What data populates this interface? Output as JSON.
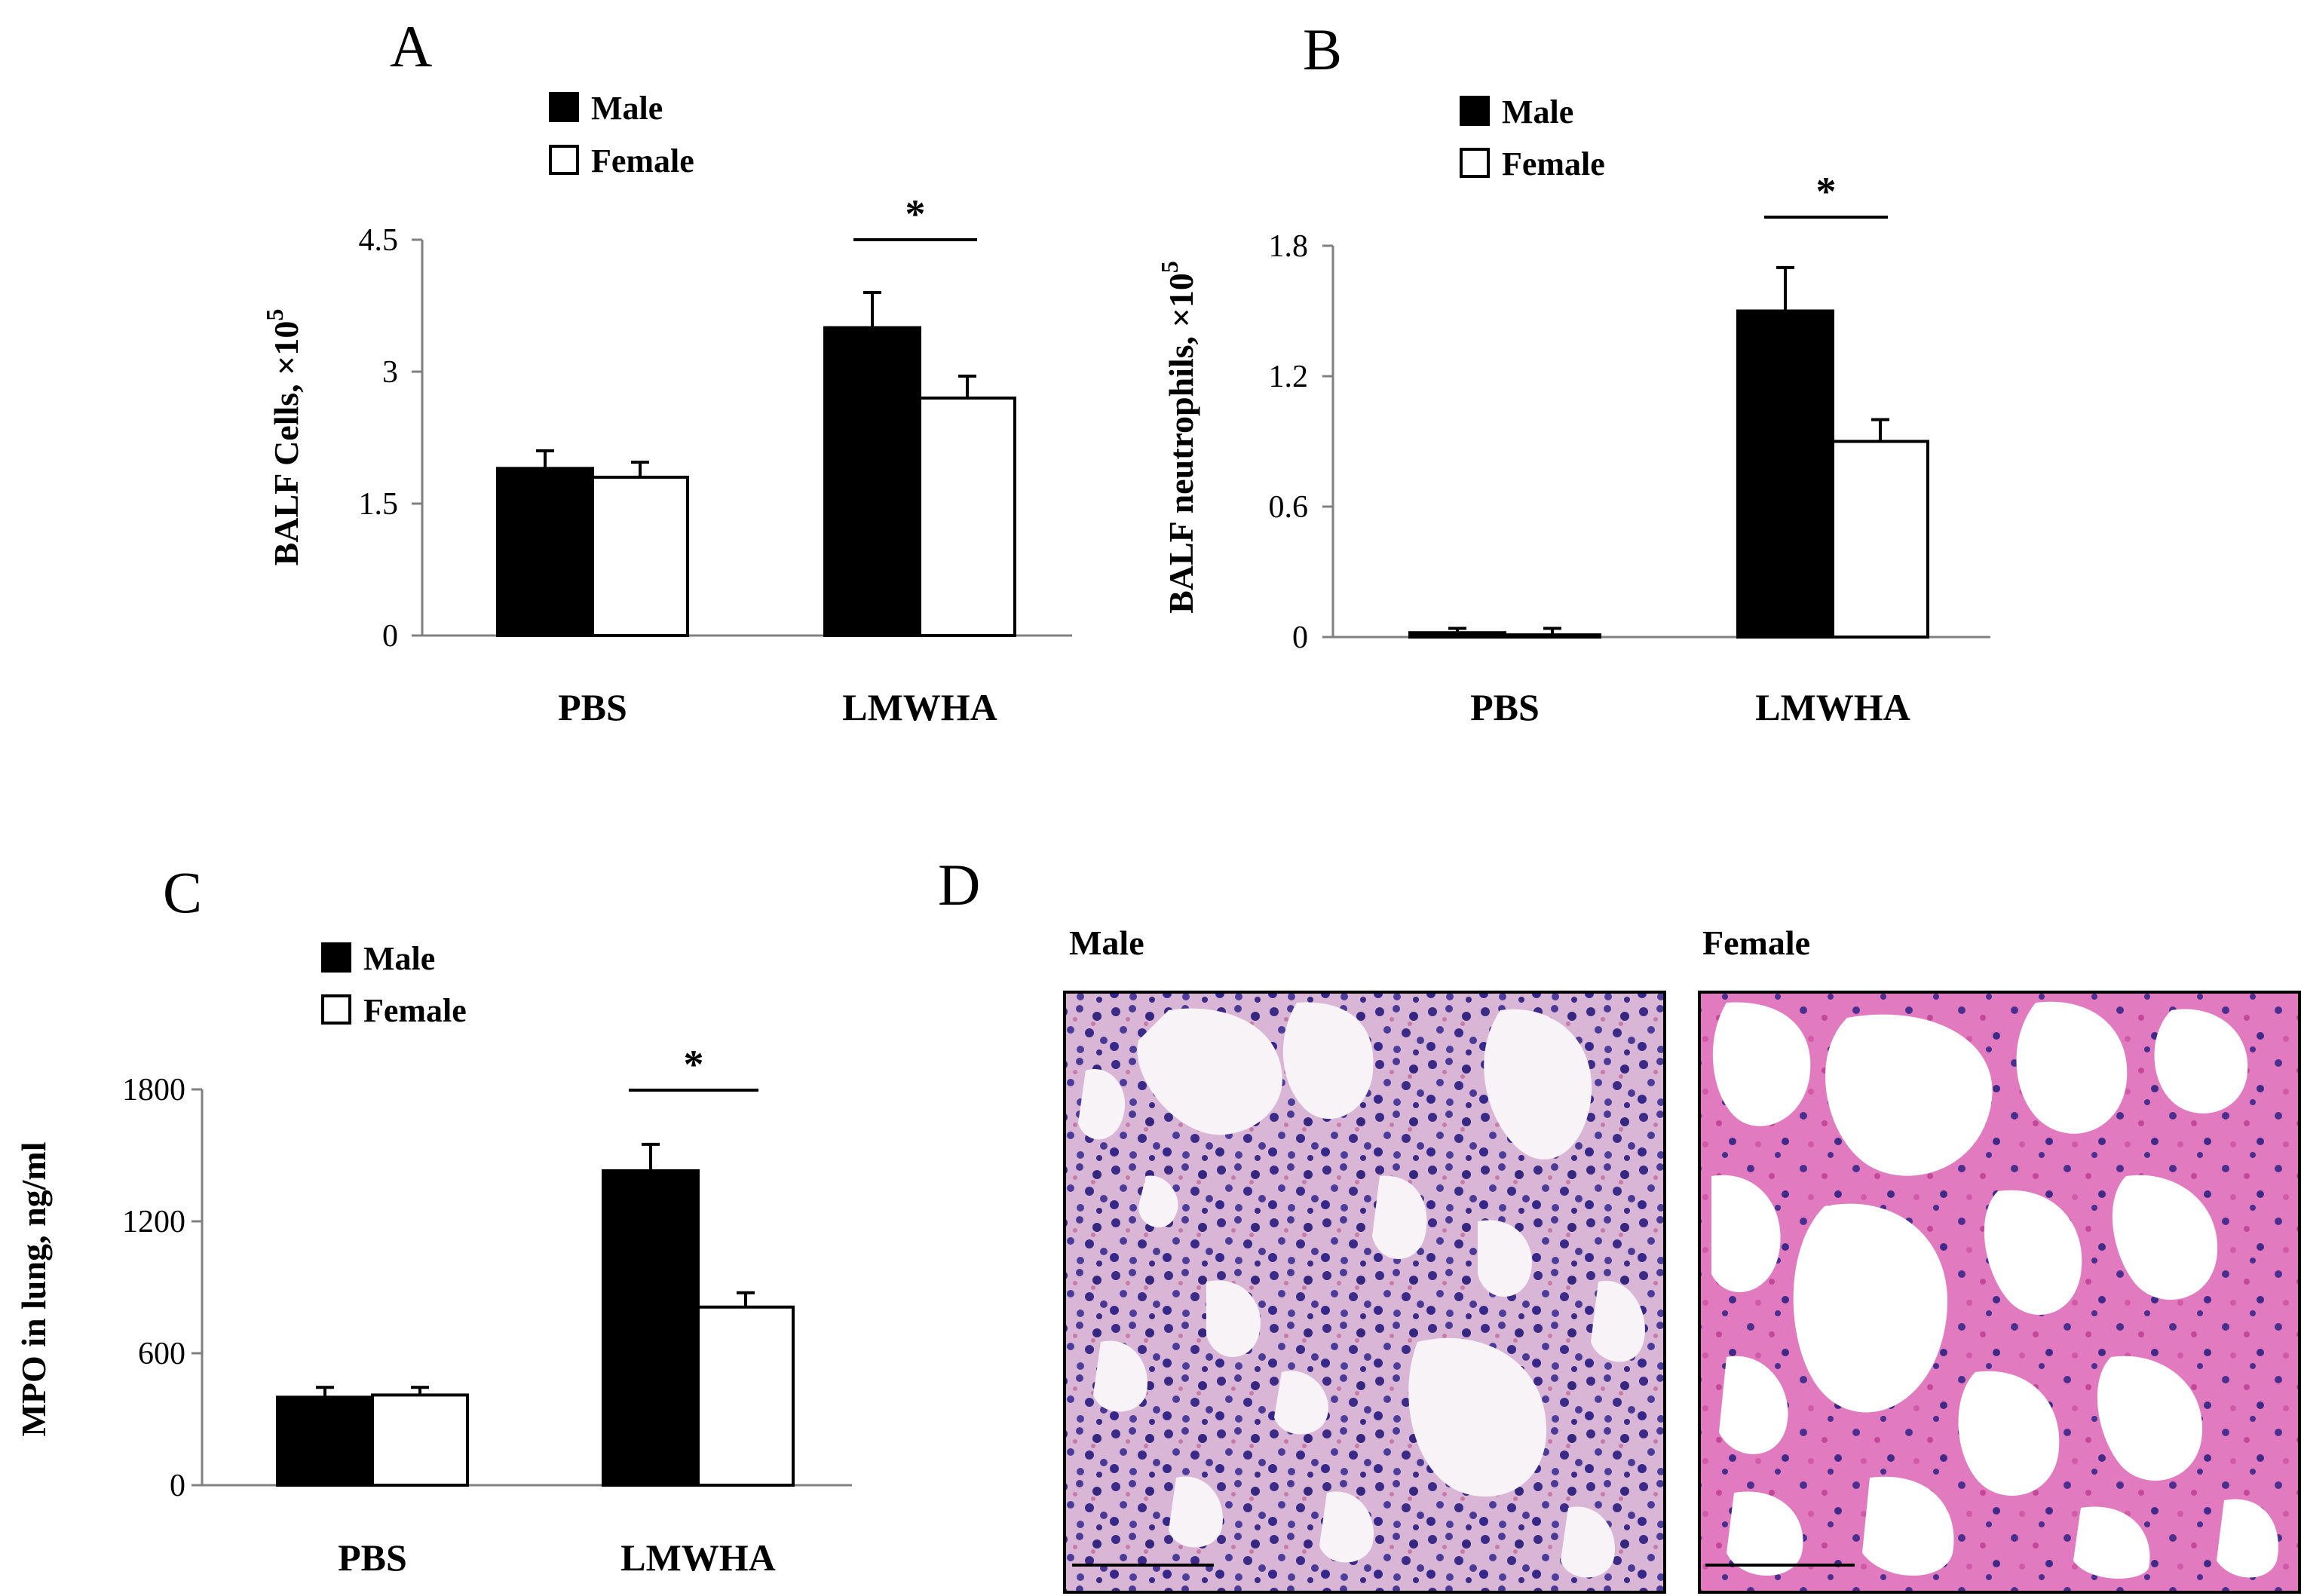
{
  "chart_data": [
    {
      "panel": "A",
      "type": "bar",
      "categories": [
        "PBS",
        "LMWHA"
      ],
      "series": [
        {
          "name": "Male",
          "values": [
            1.9,
            3.5
          ],
          "errors": [
            0.2,
            0.4
          ],
          "color": "#000000"
        },
        {
          "name": "Female",
          "values": [
            1.8,
            2.7
          ],
          "errors": [
            0.17,
            0.25
          ],
          "color": "#ffffff"
        }
      ],
      "ylabel_main": "BALF Cells, ×10",
      "ylabel_sup": "5",
      "ylim": [
        0,
        4.5
      ],
      "yticks": [
        0,
        1.5,
        3,
        4.5
      ],
      "yticklabels": [
        "0",
        "1.5",
        "3",
        "4.5"
      ],
      "significance": {
        "category": "LMWHA",
        "label": "*"
      },
      "legend": "top-left",
      "grid": false
    },
    {
      "panel": "B",
      "type": "bar",
      "categories": [
        "PBS",
        "LMWHA"
      ],
      "series": [
        {
          "name": "Male",
          "values": [
            0.02,
            1.5
          ],
          "errors": [
            0.02,
            0.2
          ],
          "color": "#000000"
        },
        {
          "name": "Female",
          "values": [
            0.01,
            0.9
          ],
          "errors": [
            0.03,
            0.1
          ],
          "color": "#ffffff"
        }
      ],
      "ylabel_main": "BALF neutrophils, ×10",
      "ylabel_sup": "5",
      "ylim": [
        0,
        1.8
      ],
      "yticks": [
        0,
        0.6,
        1.2,
        1.8
      ],
      "yticklabels": [
        "0",
        "0.6",
        "1.2",
        "1.8"
      ],
      "significance": {
        "category": "LMWHA",
        "label": "*"
      },
      "legend": "top-left",
      "grid": false
    },
    {
      "panel": "C",
      "type": "bar",
      "categories": [
        "PBS",
        "LMWHA"
      ],
      "series": [
        {
          "name": "Male",
          "values": [
            400,
            1430
          ],
          "errors": [
            45,
            120
          ],
          "color": "#000000"
        },
        {
          "name": "Female",
          "values": [
            410,
            810
          ],
          "errors": [
            35,
            65
          ],
          "color": "#ffffff"
        }
      ],
      "ylabel_main": "MPO in lung, ng/ml",
      "ylabel_sup": "",
      "ylim": [
        0,
        1800
      ],
      "yticks": [
        0,
        600,
        1200,
        1800
      ],
      "yticklabels": [
        "0",
        "600",
        "1200",
        "1800"
      ],
      "significance": {
        "category": "LMWHA",
        "label": "*"
      },
      "legend": "top-left",
      "grid": false
    }
  ],
  "panel_labels": {
    "a": "A",
    "b": "B",
    "c": "C",
    "d": "D"
  },
  "histology": {
    "panel": "D",
    "images": [
      {
        "title": "Male",
        "stain": "H&E",
        "tissue_color": "#4a3a96",
        "background": "#f7f3f6"
      },
      {
        "title": "Female",
        "stain": "H&E",
        "tissue_color": "#c4489a",
        "background": "#ffffff"
      }
    ]
  },
  "colors": {
    "male_fill": "#000000",
    "female_fill": "#ffffff",
    "axis": "#808080"
  }
}
